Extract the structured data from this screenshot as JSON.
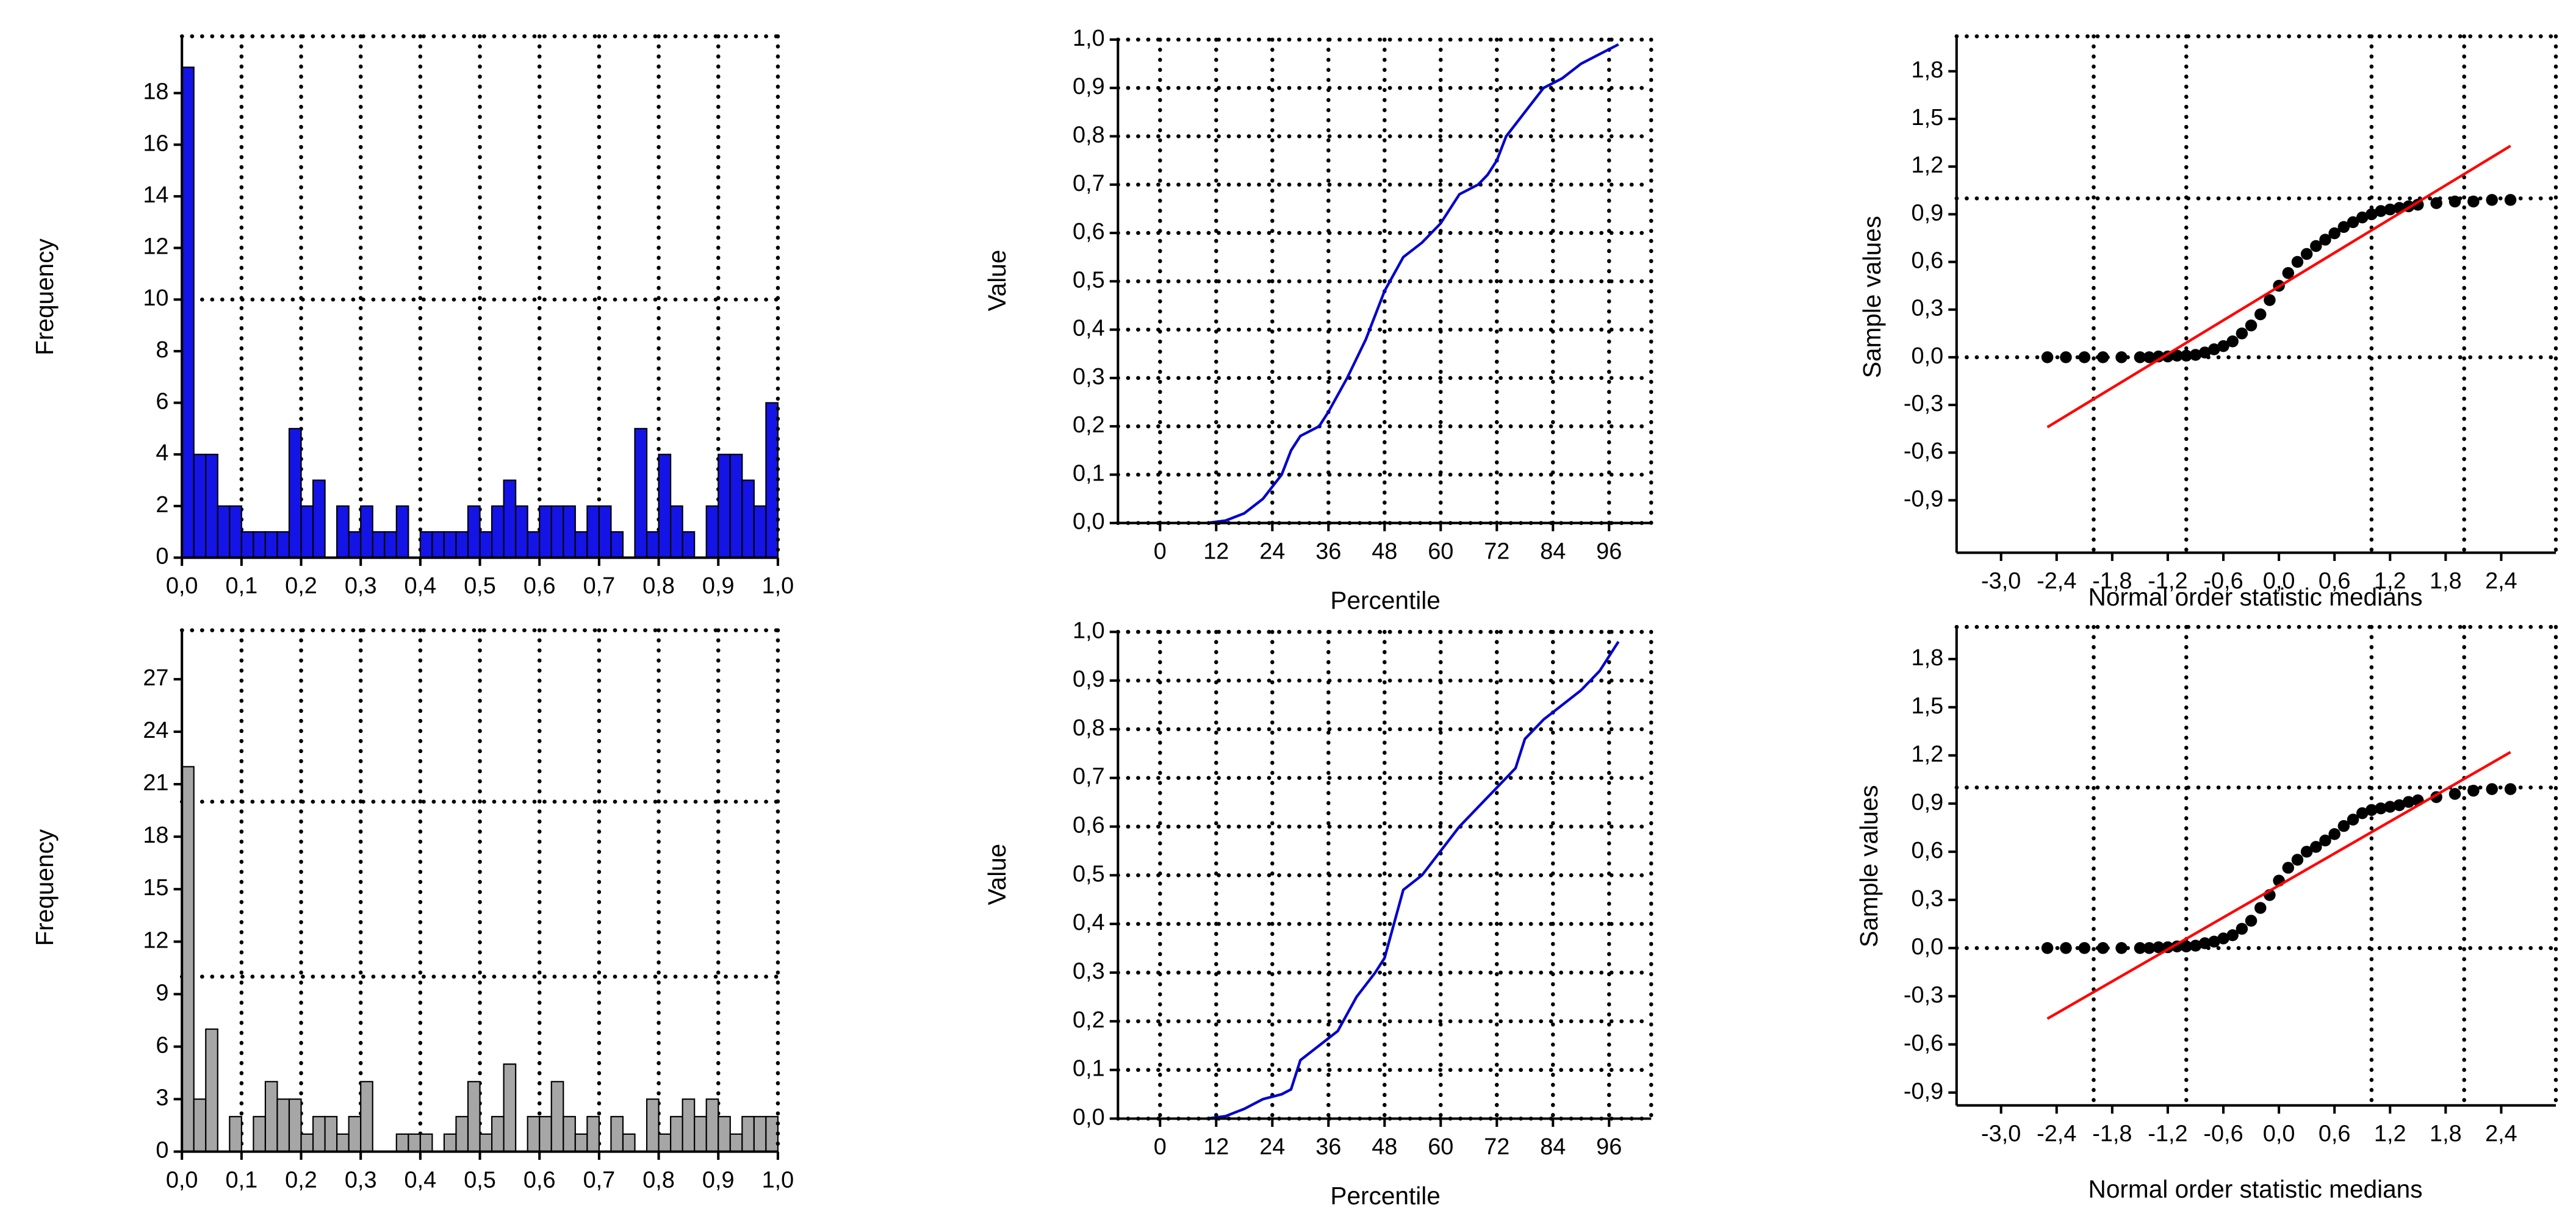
{
  "chart_data": [
    {
      "type": "histogram",
      "ylabel": "Frequency",
      "color": "#1414e6",
      "bins": [
        0,
        0.02,
        0.04,
        0.06,
        0.08,
        0.1,
        0.12,
        0.14,
        0.16,
        0.18,
        0.2,
        0.22,
        0.24,
        0.26,
        0.28,
        0.3,
        0.32,
        0.34,
        0.36,
        0.38,
        0.4,
        0.42,
        0.44,
        0.46,
        0.48,
        0.5,
        0.52,
        0.54,
        0.56,
        0.58,
        0.6,
        0.62,
        0.64,
        0.66,
        0.68,
        0.7,
        0.72,
        0.74,
        0.76,
        0.78,
        0.8,
        0.82,
        0.84,
        0.86,
        0.88,
        0.9,
        0.92,
        0.94,
        0.96,
        0.98,
        1
      ],
      "values": [
        19,
        4,
        4,
        2,
        2,
        1,
        1,
        1,
        1,
        5,
        2,
        3,
        0,
        2,
        1,
        2,
        1,
        1,
        2,
        0,
        1,
        1,
        1,
        1,
        2,
        1,
        2,
        3,
        2,
        1,
        2,
        2,
        2,
        1,
        2,
        2,
        1,
        0,
        5,
        1,
        4,
        2,
        1,
        0,
        2,
        4,
        4,
        3,
        2,
        6
      ],
      "xlim": [
        0,
        1
      ],
      "ylim": [
        0,
        20.2
      ],
      "xticks": [
        {
          "value": 0,
          "label": "0,0"
        },
        {
          "value": 0.1,
          "label": "0,1"
        },
        {
          "value": 0.2,
          "label": "0,2"
        },
        {
          "value": 0.3,
          "label": "0,3"
        },
        {
          "value": 0.4,
          "label": "0,4"
        },
        {
          "value": 0.5,
          "label": "0,5"
        },
        {
          "value": 0.6,
          "label": "0,6"
        },
        {
          "value": 0.7,
          "label": "0,7"
        },
        {
          "value": 0.8,
          "label": "0,8"
        },
        {
          "value": 0.9,
          "label": "0,9"
        },
        {
          "value": 1,
          "label": "1,0"
        }
      ],
      "yticks": [
        0,
        2,
        4,
        6,
        8,
        10,
        12,
        14,
        16,
        18
      ],
      "xgrid": [
        0.1,
        0.2,
        0.3,
        0.4,
        0.5,
        0.6,
        0.7,
        0.8,
        0.9
      ],
      "ygrid": [
        10
      ]
    },
    {
      "type": "line",
      "xlabel": "Percentile",
      "ylabel": "Value",
      "color": "#0000cc",
      "x": [
        10,
        14,
        18,
        22,
        26,
        28,
        30,
        34,
        36,
        40,
        44,
        46,
        48,
        52,
        56,
        60,
        64,
        68,
        70,
        72,
        74,
        78,
        82,
        86,
        90,
        94,
        98
      ],
      "values": [
        0,
        0.005,
        0.02,
        0.05,
        0.1,
        0.15,
        0.18,
        0.2,
        0.23,
        0.3,
        0.38,
        0.43,
        0.48,
        0.55,
        0.58,
        0.62,
        0.68,
        0.7,
        0.72,
        0.75,
        0.8,
        0.85,
        0.9,
        0.92,
        0.95,
        0.97,
        0.99
      ],
      "xlim": [
        -9,
        105
      ],
      "ylim": [
        0,
        1
      ],
      "xticks": [
        0,
        12,
        24,
        36,
        48,
        60,
        72,
        84,
        96
      ],
      "yticks": [
        {
          "value": 0,
          "label": "0,0"
        },
        {
          "value": 0.1,
          "label": "0,1"
        },
        {
          "value": 0.2,
          "label": "0,2"
        },
        {
          "value": 0.3,
          "label": "0,3"
        },
        {
          "value": 0.4,
          "label": "0,4"
        },
        {
          "value": 0.5,
          "label": "0,5"
        },
        {
          "value": 0.6,
          "label": "0,6"
        },
        {
          "value": 0.7,
          "label": "0,7"
        },
        {
          "value": 0.8,
          "label": "0,8"
        },
        {
          "value": 0.9,
          "label": "0,9"
        },
        {
          "value": 1,
          "label": "1,0"
        }
      ],
      "grid": true
    },
    {
      "type": "scatter",
      "xlabel": "Normal order statistic medians",
      "ylabel": "Sample values",
      "series": [
        {
          "color": "#000000",
          "x": [
            -2.5,
            -2.3,
            -2.1,
            -1.9,
            -1.7,
            -1.5,
            -1.4,
            -1.3,
            -1.2,
            -1.1,
            -1.0,
            -0.9,
            -0.8,
            -0.7,
            -0.6,
            -0.5,
            -0.4,
            -0.3,
            -0.2,
            -0.1,
            0.0,
            0.1,
            0.2,
            0.3,
            0.4,
            0.5,
            0.6,
            0.7,
            0.8,
            0.9,
            1.0,
            1.1,
            1.2,
            1.3,
            1.4,
            1.5,
            1.7,
            1.9,
            2.1,
            2.3,
            2.5
          ],
          "values": [
            0,
            0,
            0,
            0,
            0,
            0,
            0,
            0.005,
            0.005,
            0.01,
            0.01,
            0.015,
            0.03,
            0.05,
            0.07,
            0.1,
            0.15,
            0.2,
            0.27,
            0.36,
            0.45,
            0.53,
            0.6,
            0.65,
            0.7,
            0.74,
            0.78,
            0.82,
            0.85,
            0.88,
            0.9,
            0.92,
            0.93,
            0.94,
            0.95,
            0.96,
            0.97,
            0.98,
            0.98,
            0.99,
            0.99
          ]
        },
        {
          "color": "#ff0000",
          "x": [
            -2.5,
            2.5
          ],
          "values": [
            -0.44,
            1.33
          ]
        }
      ],
      "xlim": [
        -3.48,
        2.99
      ],
      "ylim": [
        -1.23,
        2.02
      ],
      "xticks": [
        {
          "value": -3,
          "label": "-3,0"
        },
        {
          "value": -2.4,
          "label": "-2,4"
        },
        {
          "value": -1.8,
          "label": "-1,8"
        },
        {
          "value": -1.2,
          "label": "-1,2"
        },
        {
          "value": -0.6,
          "label": "-0,6"
        },
        {
          "value": 0,
          "label": "0,0"
        },
        {
          "value": 0.6,
          "label": "0,6"
        },
        {
          "value": 1.2,
          "label": "1,2"
        },
        {
          "value": 1.8,
          "label": "1,8"
        },
        {
          "value": 2.4,
          "label": "2,4"
        }
      ],
      "yticks": [
        {
          "value": -0.9,
          "label": "-0,9"
        },
        {
          "value": -0.6,
          "label": "-0,6"
        },
        {
          "value": -0.3,
          "label": "-0,3"
        },
        {
          "value": 0,
          "label": "0,0"
        },
        {
          "value": 0.3,
          "label": "0,3"
        },
        {
          "value": 0.6,
          "label": "0,6"
        },
        {
          "value": 0.9,
          "label": "0,9"
        },
        {
          "value": 1.2,
          "label": "1,2"
        },
        {
          "value": 1.5,
          "label": "1,5"
        },
        {
          "value": 1.8,
          "label": "1,8"
        }
      ],
      "xgrid": [
        -2,
        -1,
        1,
        2
      ],
      "ygrid": [
        0,
        1
      ]
    },
    {
      "type": "histogram",
      "ylabel": "Frequency",
      "color": "#a6a6a6",
      "bins": [
        0,
        0.02,
        0.04,
        0.06,
        0.08,
        0.1,
        0.12,
        0.14,
        0.16,
        0.18,
        0.2,
        0.22,
        0.24,
        0.26,
        0.28,
        0.3,
        0.32,
        0.34,
        0.36,
        0.38,
        0.4,
        0.42,
        0.44,
        0.46,
        0.48,
        0.5,
        0.52,
        0.54,
        0.56,
        0.58,
        0.6,
        0.62,
        0.64,
        0.66,
        0.68,
        0.7,
        0.72,
        0.74,
        0.76,
        0.78,
        0.8,
        0.82,
        0.84,
        0.86,
        0.88,
        0.9,
        0.92,
        0.94,
        0.96,
        0.98,
        1
      ],
      "values": [
        22,
        3,
        7,
        0,
        2,
        0,
        2,
        4,
        3,
        3,
        1,
        2,
        2,
        1,
        2,
        4,
        0,
        0,
        1,
        1,
        1,
        0,
        1,
        2,
        4,
        1,
        2,
        5,
        0,
        2,
        2,
        4,
        2,
        1,
        2,
        0,
        2,
        1,
        0,
        3,
        1,
        2,
        3,
        2,
        3,
        2,
        1,
        2,
        2,
        2
      ],
      "xlim": [
        0,
        1
      ],
      "ylim": [
        0,
        29.8
      ],
      "xticks": [
        {
          "value": 0,
          "label": "0,0"
        },
        {
          "value": 0.1,
          "label": "0,1"
        },
        {
          "value": 0.2,
          "label": "0,2"
        },
        {
          "value": 0.3,
          "label": "0,3"
        },
        {
          "value": 0.4,
          "label": "0,4"
        },
        {
          "value": 0.5,
          "label": "0,5"
        },
        {
          "value": 0.6,
          "label": "0,6"
        },
        {
          "value": 0.7,
          "label": "0,7"
        },
        {
          "value": 0.8,
          "label": "0,8"
        },
        {
          "value": 0.9,
          "label": "0,9"
        },
        {
          "value": 1,
          "label": "1,0"
        }
      ],
      "yticks": [
        0,
        3,
        6,
        9,
        12,
        15,
        18,
        21,
        24,
        27
      ],
      "xgrid": [
        0.1,
        0.2,
        0.3,
        0.4,
        0.5,
        0.6,
        0.7,
        0.8,
        0.9
      ],
      "ygrid": [
        10,
        20
      ]
    },
    {
      "type": "line",
      "xlabel": "Percentile",
      "ylabel": "Value",
      "color": "#0000cc",
      "x": [
        10,
        14,
        18,
        22,
        26,
        28,
        30,
        34,
        38,
        42,
        46,
        48,
        50,
        52,
        56,
        60,
        64,
        68,
        72,
        76,
        78,
        82,
        86,
        90,
        94,
        98
      ],
      "values": [
        0,
        0.005,
        0.02,
        0.04,
        0.05,
        0.06,
        0.12,
        0.15,
        0.18,
        0.25,
        0.3,
        0.33,
        0.4,
        0.47,
        0.5,
        0.55,
        0.6,
        0.64,
        0.68,
        0.72,
        0.78,
        0.82,
        0.85,
        0.88,
        0.92,
        0.98
      ],
      "xlim": [
        -9,
        105
      ],
      "ylim": [
        0,
        1
      ],
      "xticks": [
        0,
        12,
        24,
        36,
        48,
        60,
        72,
        84,
        96
      ],
      "yticks": [
        {
          "value": 0,
          "label": "0,0"
        },
        {
          "value": 0.1,
          "label": "0,1"
        },
        {
          "value": 0.2,
          "label": "0,2"
        },
        {
          "value": 0.3,
          "label": "0,3"
        },
        {
          "value": 0.4,
          "label": "0,4"
        },
        {
          "value": 0.5,
          "label": "0,5"
        },
        {
          "value": 0.6,
          "label": "0,6"
        },
        {
          "value": 0.7,
          "label": "0,7"
        },
        {
          "value": 0.8,
          "label": "0,8"
        },
        {
          "value": 0.9,
          "label": "0,9"
        },
        {
          "value": 1,
          "label": "1,0"
        }
      ],
      "grid": true
    },
    {
      "type": "scatter",
      "xlabel": "Normal order statistic medians",
      "ylabel": "Sample values",
      "series": [
        {
          "color": "#000000",
          "x": [
            -2.5,
            -2.3,
            -2.1,
            -1.9,
            -1.7,
            -1.5,
            -1.4,
            -1.3,
            -1.2,
            -1.1,
            -1.0,
            -0.9,
            -0.8,
            -0.7,
            -0.6,
            -0.5,
            -0.4,
            -0.3,
            -0.2,
            -0.1,
            0.0,
            0.1,
            0.2,
            0.3,
            0.4,
            0.5,
            0.6,
            0.7,
            0.8,
            0.9,
            1.0,
            1.1,
            1.2,
            1.3,
            1.4,
            1.5,
            1.7,
            1.9,
            2.1,
            2.3,
            2.5
          ],
          "values": [
            0,
            0,
            0,
            0,
            0,
            0,
            0,
            0.005,
            0.005,
            0.01,
            0.01,
            0.015,
            0.03,
            0.04,
            0.06,
            0.08,
            0.12,
            0.17,
            0.25,
            0.33,
            0.42,
            0.5,
            0.55,
            0.6,
            0.63,
            0.67,
            0.71,
            0.76,
            0.8,
            0.84,
            0.86,
            0.87,
            0.88,
            0.89,
            0.91,
            0.92,
            0.94,
            0.96,
            0.98,
            0.99,
            0.99
          ]
        },
        {
          "color": "#ff0000",
          "x": [
            -2.5,
            2.5
          ],
          "values": [
            -0.44,
            1.22
          ]
        }
      ],
      "xlim": [
        -3.48,
        2.99
      ],
      "ylim": [
        -0.98,
        2.0
      ],
      "xticks": [
        {
          "value": -3,
          "label": "-3,0"
        },
        {
          "value": -2.4,
          "label": "-2,4"
        },
        {
          "value": -1.8,
          "label": "-1,8"
        },
        {
          "value": -1.2,
          "label": "-1,2"
        },
        {
          "value": -0.6,
          "label": "-0,6"
        },
        {
          "value": 0,
          "label": "0,0"
        },
        {
          "value": 0.6,
          "label": "0,6"
        },
        {
          "value": 1.2,
          "label": "1,2"
        },
        {
          "value": 1.8,
          "label": "1,8"
        },
        {
          "value": 2.4,
          "label": "2,4"
        }
      ],
      "yticks": [
        {
          "value": -0.9,
          "label": "-0,9"
        },
        {
          "value": -0.6,
          "label": "-0,6"
        },
        {
          "value": -0.3,
          "label": "-0,3"
        },
        {
          "value": 0,
          "label": "0,0"
        },
        {
          "value": 0.3,
          "label": "0,3"
        },
        {
          "value": 0.6,
          "label": "0,6"
        },
        {
          "value": 0.9,
          "label": "0,9"
        },
        {
          "value": 1.2,
          "label": "1,2"
        },
        {
          "value": 1.5,
          "label": "1,5"
        },
        {
          "value": 1.8,
          "label": "1,8"
        }
      ],
      "xgrid": [
        -2,
        -1,
        1,
        2
      ],
      "ygrid": [
        0,
        1
      ]
    }
  ]
}
